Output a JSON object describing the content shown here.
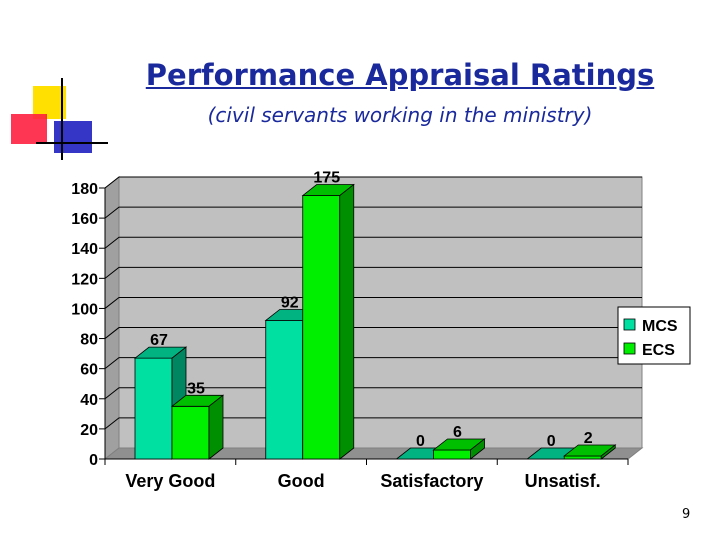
{
  "slide": {
    "title": "Performance Appraisal Ratings",
    "subtitle": "(civil servants working in the ministry)",
    "page_number": "9"
  },
  "colors": {
    "title": "#1a2a9c",
    "plot_background": "#c0c0c0",
    "mcs": "#00e0a0",
    "ecs": "#00ee00",
    "deco_yellow": "#ffe000",
    "deco_red": "#ff2040",
    "deco_blue": "#2020c0"
  },
  "chart_data": {
    "type": "bar",
    "categories": [
      "Very Good",
      "Good",
      "Satisfactory",
      "Unsatisf."
    ],
    "series": [
      {
        "name": "MCS",
        "values": [
          67,
          92,
          0,
          0
        ]
      },
      {
        "name": "ECS",
        "values": [
          35,
          175,
          6,
          2
        ]
      }
    ],
    "ylim": [
      0,
      180
    ],
    "yticks": [
      0,
      20,
      40,
      60,
      80,
      100,
      120,
      140,
      160,
      180
    ],
    "grid": true,
    "legend": "right",
    "data_labels": true,
    "style": "3d clustered columns"
  }
}
